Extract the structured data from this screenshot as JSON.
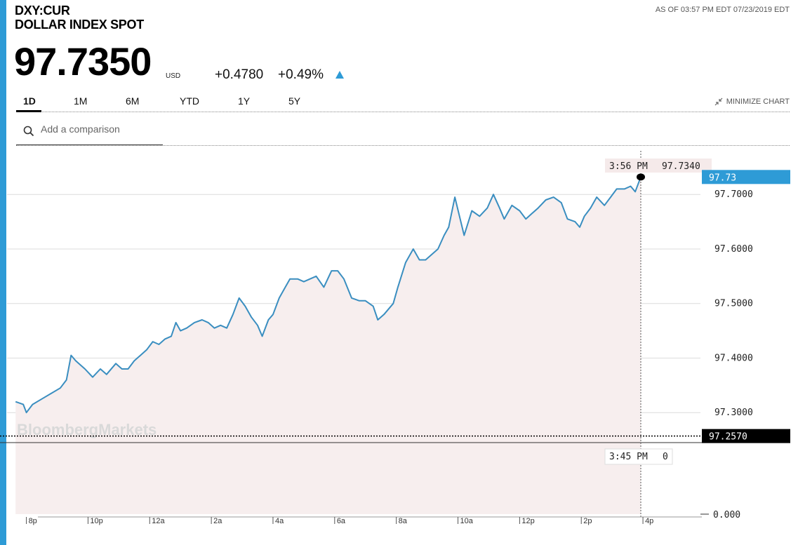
{
  "header": {
    "ticker": "DXY:CUR",
    "name": "DOLLAR INDEX SPOT",
    "as_of": "AS OF 03:57 PM EDT 07/23/2019 EDT"
  },
  "quote": {
    "price": "97.7350",
    "currency": "USD",
    "change": "+0.4780",
    "change_pct": "+0.49%",
    "direction": "up"
  },
  "tabs": [
    {
      "label": "1D",
      "active": true
    },
    {
      "label": "1M",
      "active": false
    },
    {
      "label": "6M",
      "active": false
    },
    {
      "label": "YTD",
      "active": false
    },
    {
      "label": "1Y",
      "active": false
    },
    {
      "label": "5Y",
      "active": false
    }
  ],
  "minimize_label": "MINIMIZE CHART",
  "search": {
    "placeholder": "Add a comparison"
  },
  "colors": {
    "accent": "#2e9bd6",
    "line": "#3a8ec0",
    "area": "#f7eeee",
    "previous_close": "#000000"
  },
  "chart_data": {
    "type": "area",
    "watermark": "BloombergMarkets",
    "x_ticks": [
      "8p",
      "10p",
      "12a",
      "2a",
      "4a",
      "6a",
      "8a",
      "10a",
      "12p",
      "2p",
      "4p"
    ],
    "x_tick_hours": [
      20,
      22,
      24,
      26,
      28,
      30,
      32,
      34,
      36,
      38,
      40
    ],
    "xlim_hours": [
      19.6,
      41
    ],
    "price_pane": {
      "ylim": [
        97.245,
        97.78
      ],
      "y_ticks": [
        "97.3000",
        "97.4000",
        "97.5000",
        "97.6000",
        "97.7000"
      ],
      "y_tick_values": [
        97.3,
        97.4,
        97.5,
        97.6,
        97.7
      ]
    },
    "volume_pane": {
      "y_tick": "0.000"
    },
    "last_value_label": "97.73",
    "previous_close": {
      "label": "97.2570",
      "value": 97.257
    },
    "crosshair": {
      "time_label": "3:56 PM",
      "value_label": "97.7340",
      "lower_time_label": "3:45 PM",
      "lower_value_label": "0",
      "hour": 39.93
    },
    "last_point": {
      "hour": 39.93,
      "value": 97.732
    },
    "series": [
      {
        "points": [
          [
            19.65,
            97.32
          ],
          [
            19.9,
            97.315
          ],
          [
            20.0,
            97.3
          ],
          [
            20.2,
            97.315
          ],
          [
            20.5,
            97.325
          ],
          [
            20.8,
            97.335
          ],
          [
            21.1,
            97.345
          ],
          [
            21.3,
            97.36
          ],
          [
            21.45,
            97.405
          ],
          [
            21.6,
            97.395
          ],
          [
            21.9,
            97.38
          ],
          [
            22.15,
            97.365
          ],
          [
            22.4,
            97.38
          ],
          [
            22.6,
            97.37
          ],
          [
            22.9,
            97.39
          ],
          [
            23.1,
            97.38
          ],
          [
            23.3,
            97.38
          ],
          [
            23.5,
            97.395
          ],
          [
            23.7,
            97.405
          ],
          [
            23.9,
            97.415
          ],
          [
            24.1,
            97.43
          ],
          [
            24.3,
            97.425
          ],
          [
            24.5,
            97.435
          ],
          [
            24.7,
            97.44
          ],
          [
            24.85,
            97.465
          ],
          [
            25.0,
            97.45
          ],
          [
            25.2,
            97.455
          ],
          [
            25.45,
            97.465
          ],
          [
            25.7,
            97.47
          ],
          [
            25.9,
            97.465
          ],
          [
            26.1,
            97.455
          ],
          [
            26.3,
            97.46
          ],
          [
            26.5,
            97.455
          ],
          [
            26.7,
            97.48
          ],
          [
            26.9,
            97.51
          ],
          [
            27.1,
            97.495
          ],
          [
            27.3,
            97.475
          ],
          [
            27.5,
            97.46
          ],
          [
            27.65,
            97.44
          ],
          [
            27.85,
            97.47
          ],
          [
            28.0,
            97.48
          ],
          [
            28.2,
            97.51
          ],
          [
            28.4,
            97.53
          ],
          [
            28.55,
            97.545
          ],
          [
            28.8,
            97.545
          ],
          [
            29.0,
            97.54
          ],
          [
            29.2,
            97.545
          ],
          [
            29.4,
            97.55
          ],
          [
            29.65,
            97.53
          ],
          [
            29.9,
            97.56
          ],
          [
            30.1,
            97.56
          ],
          [
            30.3,
            97.545
          ],
          [
            30.55,
            97.51
          ],
          [
            30.8,
            97.505
          ],
          [
            31.0,
            97.505
          ],
          [
            31.25,
            97.495
          ],
          [
            31.4,
            97.47
          ],
          [
            31.6,
            97.48
          ],
          [
            31.9,
            97.5
          ],
          [
            32.05,
            97.53
          ],
          [
            32.3,
            97.575
          ],
          [
            32.55,
            97.6
          ],
          [
            32.75,
            97.58
          ],
          [
            32.95,
            97.58
          ],
          [
            33.15,
            97.59
          ],
          [
            33.35,
            97.6
          ],
          [
            33.55,
            97.625
          ],
          [
            33.7,
            97.64
          ],
          [
            33.9,
            97.695
          ],
          [
            34.05,
            97.66
          ],
          [
            34.2,
            97.625
          ],
          [
            34.45,
            97.67
          ],
          [
            34.7,
            97.66
          ],
          [
            34.95,
            97.675
          ],
          [
            35.15,
            97.7
          ],
          [
            35.35,
            97.675
          ],
          [
            35.5,
            97.655
          ],
          [
            35.75,
            97.68
          ],
          [
            36.0,
            97.67
          ],
          [
            36.2,
            97.655
          ],
          [
            36.4,
            97.665
          ],
          [
            36.6,
            97.675
          ],
          [
            36.85,
            97.69
          ],
          [
            37.1,
            97.695
          ],
          [
            37.35,
            97.685
          ],
          [
            37.55,
            97.655
          ],
          [
            37.8,
            97.65
          ],
          [
            37.95,
            97.64
          ],
          [
            38.1,
            97.66
          ],
          [
            38.3,
            97.675
          ],
          [
            38.5,
            97.695
          ],
          [
            38.75,
            97.68
          ],
          [
            38.95,
            97.695
          ],
          [
            39.15,
            97.71
          ],
          [
            39.4,
            97.71
          ],
          [
            39.6,
            97.715
          ],
          [
            39.75,
            97.705
          ],
          [
            39.93,
            97.732
          ]
        ]
      }
    ]
  }
}
